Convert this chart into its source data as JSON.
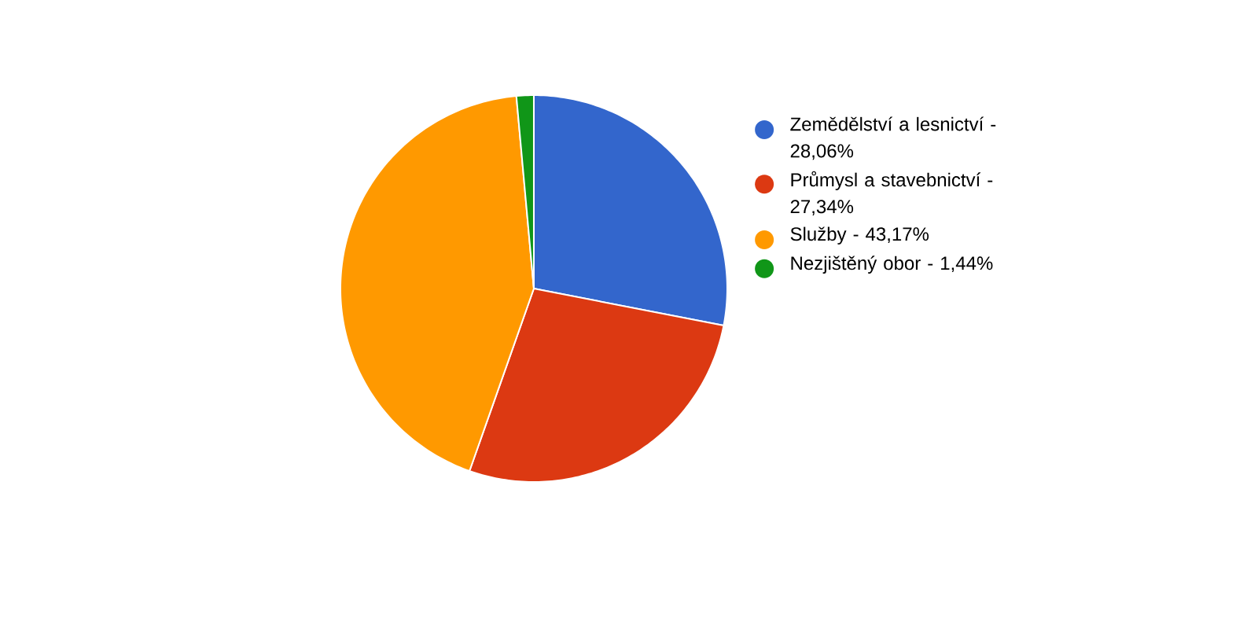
{
  "chart_data": {
    "type": "pie",
    "categories": [
      "Zemědělství a lesnictví - 28,06%",
      "Průmysl a stavebnictví - 27,34%",
      "Služby - 43,17%",
      "Nezjištěný obor - 1,44%"
    ],
    "values": [
      28.06,
      27.34,
      43.17,
      1.44
    ],
    "colors": [
      "#3366cc",
      "#dc3912",
      "#ff9900",
      "#109618"
    ],
    "legend": "right"
  }
}
